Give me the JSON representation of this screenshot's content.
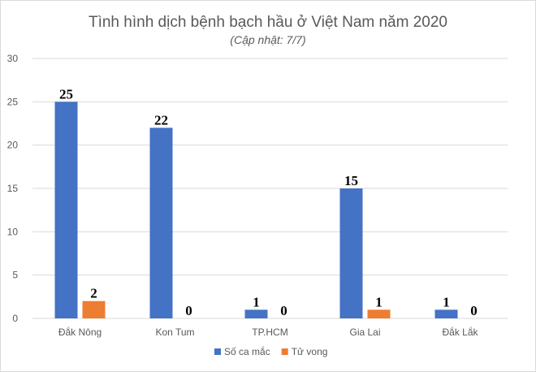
{
  "chart_data": {
    "type": "bar",
    "title": "Tình hình dịch bệnh bạch hầu ở Việt Nam năm 2020",
    "subtitle": "(Cập nhật: 7/7)",
    "categories": [
      "Đắk Nông",
      "Kon Tum",
      "TP.HCM",
      "Gia Lai",
      "Đắk Lắk"
    ],
    "series": [
      {
        "name": "Số ca mắc",
        "values": [
          25,
          22,
          1,
          15,
          1
        ],
        "color": "#4472C4"
      },
      {
        "name": "Tử vong",
        "values": [
          2,
          0,
          0,
          1,
          0
        ],
        "color": "#ED7D31"
      }
    ],
    "yticks": [
      "0",
      "5",
      "10",
      "15",
      "20",
      "25",
      "30"
    ],
    "ylim": [
      0,
      30
    ],
    "grid": true,
    "legend_position": "bottom",
    "data_labels": true
  }
}
